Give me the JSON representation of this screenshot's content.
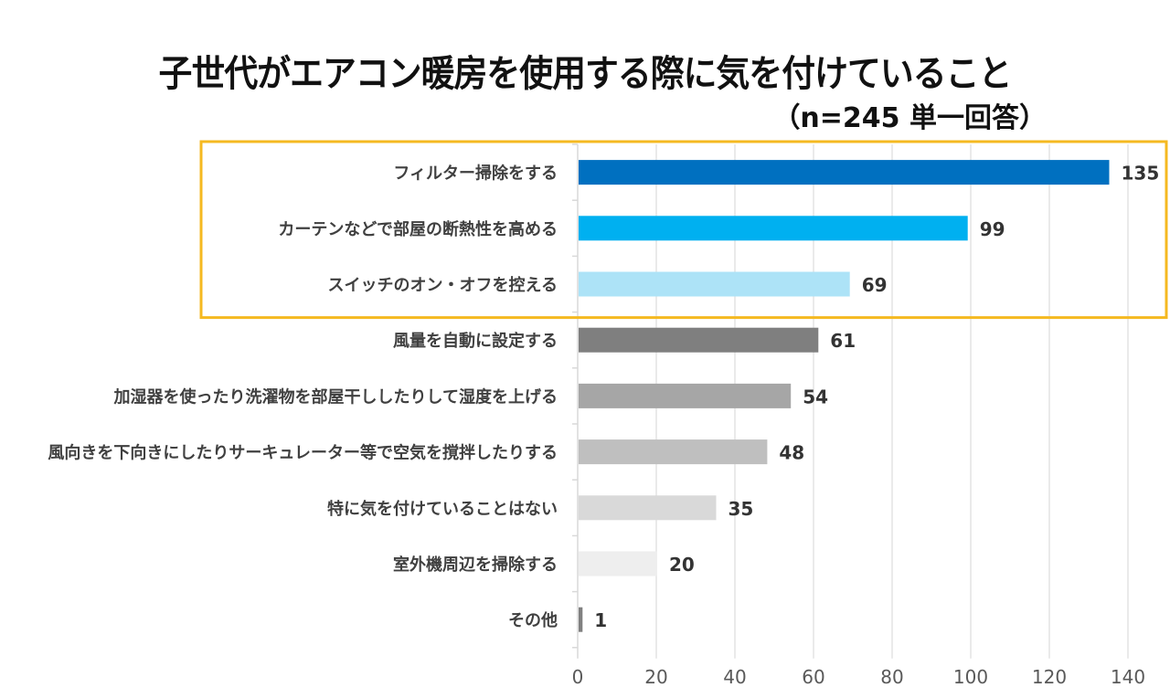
{
  "chart_data": {
    "type": "bar",
    "orientation": "horizontal",
    "title": "子世代がエアコン暖房を使用する際に気を付けていること",
    "subtitle": "（n=245 単一回答）",
    "xlabel": "",
    "ylabel": "",
    "xlim": [
      0,
      140
    ],
    "xticks": [
      0,
      20,
      40,
      60,
      80,
      100,
      120,
      140
    ],
    "grid": true,
    "categories": [
      "フィルター掃除をする",
      "カーテンなどで部屋の断熱性を高める",
      "スイッチのオン・オフを控える",
      "風量を自動に設定する",
      "加湿器を使ったり洗濯物を部屋干ししたりして湿度を上げる",
      "風向きを下向きにしたりサーキュレーター等で空気を撹拌したりする",
      "特に気を付けていることはない",
      "室外機周辺を掃除する",
      "その他"
    ],
    "values": [
      135,
      99,
      69,
      61,
      54,
      48,
      35,
      20,
      1
    ],
    "bar_colors": [
      "#0070c0",
      "#00b0f0",
      "#ade3f7",
      "#7f7f7f",
      "#a6a6a6",
      "#bfbfbf",
      "#d9d9d9",
      "#eeeeee",
      "#808080"
    ],
    "highlight": {
      "categories_highlighted": [
        0,
        1,
        2
      ],
      "color": "#f5b921"
    }
  }
}
